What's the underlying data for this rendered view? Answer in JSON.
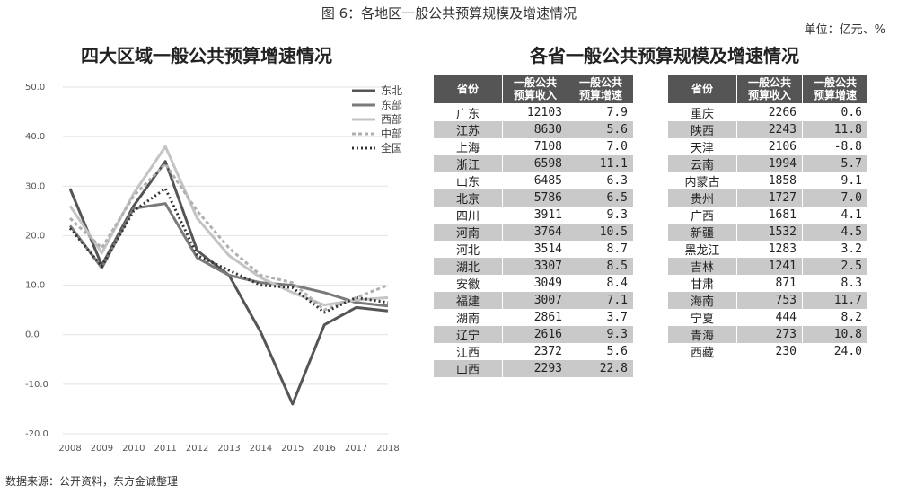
{
  "figure_title": "图 6：各地区一般公共预算规模及增速情况",
  "unit_label": "单位：亿元、%",
  "source_note": "数据来源：公开资料，东方金诚整理",
  "chart_data": {
    "type": "line",
    "title": "四大区域一般公共预算增速情况",
    "x": [
      "2008",
      "2009",
      "2010",
      "2011",
      "2012",
      "2013",
      "2014",
      "2015",
      "2016",
      "2017",
      "2018"
    ],
    "yticks": [
      "50.0",
      "40.0",
      "30.0",
      "20.0",
      "10.0",
      "0.0",
      "-10.0",
      "-20.0"
    ],
    "ylim": [
      -20,
      50
    ],
    "grid": true,
    "legend_position": "top-right",
    "series": [
      {
        "name": "东北",
        "color": "#555555",
        "dash": "",
        "values": [
          29.5,
          14.0,
          26.0,
          35.0,
          17.0,
          12.0,
          0.5,
          -14.0,
          2.0,
          5.5,
          4.8
        ]
      },
      {
        "name": "东部",
        "color": "#7a7a7a",
        "dash": "",
        "values": [
          22.0,
          13.5,
          25.5,
          26.5,
          15.5,
          12.0,
          10.5,
          10.0,
          8.5,
          6.5,
          5.8
        ]
      },
      {
        "name": "西部",
        "color": "#c4c4c4",
        "dash": "",
        "values": [
          26.0,
          16.5,
          28.5,
          38.0,
          23.5,
          16.0,
          11.5,
          8.5,
          6.0,
          7.0,
          7.5
        ]
      },
      {
        "name": "中部",
        "color": "#b0b0b0",
        "dash": "4,3",
        "values": [
          23.5,
          17.5,
          28.0,
          34.5,
          25.0,
          17.5,
          12.0,
          10.5,
          5.0,
          7.5,
          10.0
        ]
      },
      {
        "name": "全国",
        "color": "#333333",
        "dash": "2,3",
        "values": [
          21.5,
          13.8,
          25.0,
          29.5,
          16.0,
          13.0,
          10.0,
          9.5,
          4.5,
          7.5,
          6.5
        ]
      }
    ]
  },
  "table": {
    "title": "各省一般公共预算规模及增速情况",
    "headers": {
      "province": "省份",
      "revenue": "一般公共\n预算收入",
      "growth": "一般公共\n预算增速"
    },
    "left_rows": [
      [
        "广东",
        "12103",
        "7.9"
      ],
      [
        "江苏",
        "8630",
        "5.6"
      ],
      [
        "上海",
        "7108",
        "7.0"
      ],
      [
        "浙江",
        "6598",
        "11.1"
      ],
      [
        "山东",
        "6485",
        "6.3"
      ],
      [
        "北京",
        "5786",
        "6.5"
      ],
      [
        "四川",
        "3911",
        "9.3"
      ],
      [
        "河南",
        "3764",
        "10.5"
      ],
      [
        "河北",
        "3514",
        "8.7"
      ],
      [
        "湖北",
        "3307",
        "8.5"
      ],
      [
        "安徽",
        "3049",
        "8.4"
      ],
      [
        "福建",
        "3007",
        "7.1"
      ],
      [
        "湖南",
        "2861",
        "3.7"
      ],
      [
        "辽宁",
        "2616",
        "9.3"
      ],
      [
        "江西",
        "2372",
        "5.6"
      ],
      [
        "山西",
        "2293",
        "22.8"
      ]
    ],
    "right_rows": [
      [
        "重庆",
        "2266",
        "0.6"
      ],
      [
        "陕西",
        "2243",
        "11.8"
      ],
      [
        "天津",
        "2106",
        "-8.8"
      ],
      [
        "云南",
        "1994",
        "5.7"
      ],
      [
        "内蒙古",
        "1858",
        "9.1"
      ],
      [
        "贵州",
        "1727",
        "7.0"
      ],
      [
        "广西",
        "1681",
        "4.1"
      ],
      [
        "新疆",
        "1532",
        "4.5"
      ],
      [
        "黑龙江",
        "1283",
        "3.2"
      ],
      [
        "吉林",
        "1241",
        "2.5"
      ],
      [
        "甘肃",
        "871",
        "8.3"
      ],
      [
        "海南",
        "753",
        "11.7"
      ],
      [
        "宁夏",
        "444",
        "8.2"
      ],
      [
        "青海",
        "273",
        "10.8"
      ],
      [
        "西藏",
        "230",
        "24.0"
      ]
    ]
  }
}
